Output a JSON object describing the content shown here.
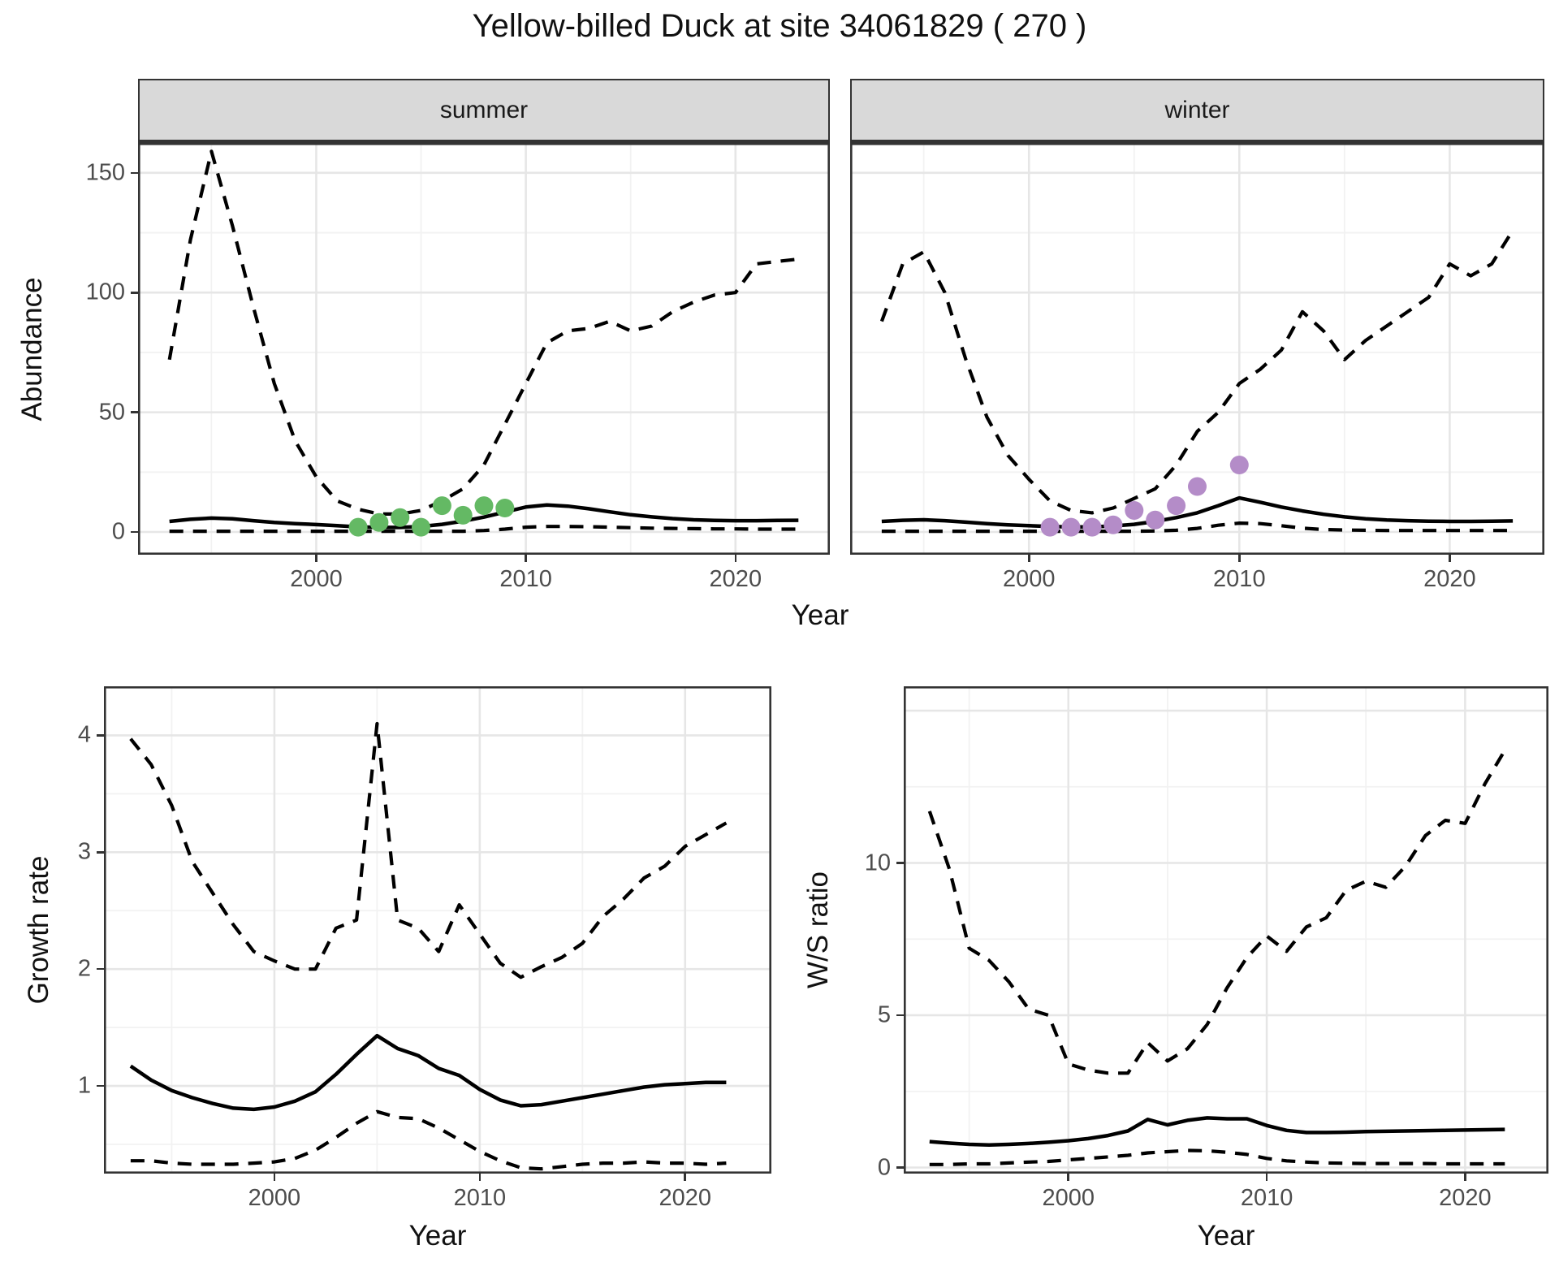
{
  "title": "Yellow-billed Duck at site 34061829 ( 270 )",
  "colors": {
    "line": "#000000",
    "summer_points": "#64b964",
    "winter_points": "#b48cc8",
    "grid_major": "#e6e6e6",
    "grid_minor": "#f2f2f2",
    "axis": "#333333",
    "tick_text": "#4d4d4d",
    "strip_bg": "#d9d9d9"
  },
  "top_row": {
    "ylabel": "Abundance",
    "xlabel": "Year"
  },
  "bottom_left": {
    "ylabel": "Growth rate",
    "xlabel": "Year"
  },
  "bottom_right": {
    "ylabel": "W/S ratio",
    "xlabel": "Year"
  },
  "chart_data": [
    {
      "id": "summer",
      "type": "line",
      "facet_label": "summer",
      "xlim": [
        1991.5,
        2024.5
      ],
      "ylim": [
        -9.5,
        162.5
      ],
      "xticks": {
        "major": [
          2000,
          2010,
          2020
        ],
        "minor": [
          1995,
          2005,
          2015
        ],
        "labels": [
          "2000",
          "2010",
          "2020"
        ]
      },
      "yticks": {
        "major": [
          0,
          50,
          100,
          150
        ],
        "minor": [
          25,
          75,
          125
        ],
        "labels": [
          "0",
          "50",
          "100",
          "150"
        ]
      },
      "show_y_labels": true,
      "show_x_labels": true,
      "x": [
        1993,
        1994,
        1995,
        1996,
        1997,
        1998,
        1999,
        2000,
        2001,
        2002,
        2003,
        2004,
        2005,
        2006,
        2007,
        2008,
        2009,
        2010,
        2011,
        2012,
        2013,
        2014,
        2015,
        2016,
        2017,
        2018,
        2019,
        2020,
        2021,
        2022,
        2023
      ],
      "series": [
        {
          "name": "upper_ci",
          "style": "dashed",
          "values": [
            72,
            122,
            159,
            128,
            94,
            62,
            38,
            23,
            13,
            9.5,
            7.5,
            7.5,
            9,
            13,
            18,
            28,
            45,
            62,
            79,
            84,
            85,
            88,
            84,
            86,
            92,
            96,
            99,
            100,
            112,
            113,
            114
          ]
        },
        {
          "name": "lower_ci",
          "style": "dashed",
          "values": [
            0.3,
            0.3,
            0.3,
            0.3,
            0.3,
            0.3,
            0.3,
            0.3,
            0.3,
            0.3,
            0.3,
            0.3,
            0.3,
            0.3,
            0.3,
            0.6,
            1.2,
            2.0,
            2.3,
            2.3,
            2.2,
            2.0,
            1.8,
            1.6,
            1.5,
            1.4,
            1.3,
            1.3,
            1.2,
            1.2,
            1.2
          ]
        },
        {
          "name": "fitted",
          "style": "solid",
          "values": [
            4.4,
            5.3,
            5.8,
            5.5,
            4.7,
            4.0,
            3.5,
            3.1,
            2.6,
            2.1,
            1.9,
            1.9,
            2.3,
            3.2,
            4.5,
            6.2,
            8.3,
            10.4,
            11.3,
            10.8,
            9.7,
            8.4,
            7.2,
            6.3,
            5.6,
            5.1,
            4.8,
            4.7,
            4.7,
            4.8,
            4.9
          ]
        }
      ],
      "points": {
        "name": "observed_counts",
        "color": "#64b964",
        "data": [
          [
            2002,
            2
          ],
          [
            2003,
            4
          ],
          [
            2004,
            6
          ],
          [
            2005,
            2
          ],
          [
            2006,
            11
          ],
          [
            2007,
            7
          ],
          [
            2008,
            11
          ],
          [
            2009,
            10
          ]
        ]
      }
    },
    {
      "id": "winter",
      "type": "line",
      "facet_label": "winter",
      "xlim": [
        1991.5,
        2024.5
      ],
      "ylim": [
        -9.5,
        162.5
      ],
      "xticks": {
        "major": [
          2000,
          2010,
          2020
        ],
        "minor": [
          1995,
          2005,
          2015
        ],
        "labels": [
          "2000",
          "2010",
          "2020"
        ]
      },
      "yticks": {
        "major": [
          0,
          50,
          100,
          150
        ],
        "minor": [
          25,
          75,
          125
        ],
        "labels": [
          "0",
          "50",
          "100",
          "150"
        ]
      },
      "show_y_labels": false,
      "show_x_labels": true,
      "x": [
        1993,
        1994,
        1995,
        1996,
        1997,
        1998,
        1999,
        2000,
        2001,
        2002,
        2003,
        2004,
        2005,
        2006,
        2007,
        2008,
        2009,
        2010,
        2011,
        2012,
        2013,
        2014,
        2015,
        2016,
        2017,
        2018,
        2019,
        2020,
        2021,
        2022,
        2023
      ],
      "series": [
        {
          "name": "upper_ci",
          "style": "dashed",
          "values": [
            88,
            112,
            117,
            100,
            72,
            48,
            32,
            22,
            13,
            9,
            8,
            10,
            14,
            18,
            28,
            42,
            50,
            62,
            68,
            76,
            92,
            84,
            72,
            80,
            86,
            92,
            98,
            112,
            107,
            112,
            126
          ]
        },
        {
          "name": "lower_ci",
          "style": "dashed",
          "values": [
            0.3,
            0.3,
            0.3,
            0.3,
            0.3,
            0.3,
            0.3,
            0.3,
            0.3,
            0.3,
            0.3,
            0.3,
            0.3,
            0.4,
            0.7,
            1.5,
            2.8,
            3.7,
            3.5,
            2.6,
            1.6,
            1.0,
            0.8,
            0.7,
            0.6,
            0.6,
            0.6,
            0.6,
            0.6,
            0.6,
            0.6
          ]
        },
        {
          "name": "fitted",
          "style": "solid",
          "values": [
            4.4,
            4.9,
            5.1,
            4.7,
            4.1,
            3.5,
            3.0,
            2.6,
            2.3,
            2.1,
            2.1,
            2.5,
            3.2,
            4.4,
            6.0,
            8.0,
            11.0,
            14.2,
            12.4,
            10.4,
            8.8,
            7.4,
            6.3,
            5.5,
            5.0,
            4.7,
            4.5,
            4.4,
            4.4,
            4.5,
            4.6
          ]
        }
      ],
      "points": {
        "name": "observed_counts",
        "color": "#b48cc8",
        "data": [
          [
            2001,
            2
          ],
          [
            2002,
            2
          ],
          [
            2003,
            2
          ],
          [
            2004,
            3
          ],
          [
            2005,
            9
          ],
          [
            2006,
            5
          ],
          [
            2007,
            11
          ],
          [
            2008,
            19
          ],
          [
            2010,
            28
          ]
        ]
      }
    },
    {
      "id": "growth",
      "type": "line",
      "facet_label": "",
      "xlim": [
        1991.7,
        2024.2
      ],
      "ylim": [
        0.25,
        4.42
      ],
      "xticks": {
        "major": [
          2000,
          2010,
          2020
        ],
        "minor": [
          1995,
          2005,
          2015
        ],
        "labels": [
          "2000",
          "2010",
          "2020"
        ]
      },
      "yticks": {
        "major": [
          1,
          2,
          3,
          4
        ],
        "minor": [
          0.5,
          1.5,
          2.5,
          3.5
        ],
        "labels": [
          "1",
          "2",
          "3",
          "4"
        ]
      },
      "show_y_labels": true,
      "show_x_labels": true,
      "x": [
        1993,
        1994,
        1995,
        1996,
        1997,
        1998,
        1999,
        2000,
        2001,
        2002,
        2003,
        2004,
        2005,
        2006,
        2007,
        2008,
        2009,
        2010,
        2011,
        2012,
        2013,
        2014,
        2015,
        2016,
        2017,
        2018,
        2019,
        2020,
        2021,
        2022
      ],
      "series": [
        {
          "name": "upper_ci",
          "style": "dashed",
          "values": [
            3.97,
            3.75,
            3.4,
            2.92,
            2.65,
            2.38,
            2.15,
            2.07,
            2.0,
            2.0,
            2.35,
            2.42,
            4.1,
            2.42,
            2.35,
            2.15,
            2.55,
            2.3,
            2.05,
            1.93,
            2.02,
            2.1,
            2.22,
            2.45,
            2.6,
            2.78,
            2.88,
            3.05,
            3.15,
            3.25
          ]
        },
        {
          "name": "lower_ci",
          "style": "dashed",
          "values": [
            0.36,
            0.36,
            0.34,
            0.33,
            0.33,
            0.33,
            0.34,
            0.35,
            0.38,
            0.45,
            0.56,
            0.68,
            0.78,
            0.73,
            0.72,
            0.64,
            0.54,
            0.44,
            0.36,
            0.3,
            0.29,
            0.31,
            0.33,
            0.34,
            0.34,
            0.35,
            0.34,
            0.34,
            0.33,
            0.34
          ]
        },
        {
          "name": "fitted",
          "style": "solid",
          "values": [
            1.17,
            1.05,
            0.96,
            0.9,
            0.85,
            0.81,
            0.8,
            0.82,
            0.87,
            0.95,
            1.1,
            1.27,
            1.43,
            1.32,
            1.26,
            1.15,
            1.09,
            0.97,
            0.88,
            0.83,
            0.84,
            0.87,
            0.9,
            0.93,
            0.96,
            0.99,
            1.01,
            1.02,
            1.03,
            1.03
          ]
        }
      ],
      "points": null
    },
    {
      "id": "ws",
      "type": "line",
      "facet_label": "",
      "xlim": [
        1991.7,
        2024.2
      ],
      "ylim": [
        -0.2,
        15.8
      ],
      "xticks": {
        "major": [
          2000,
          2010,
          2020
        ],
        "minor": [
          1995,
          2005,
          2015
        ],
        "labels": [
          "2000",
          "2010",
          "2020"
        ]
      },
      "yticks": {
        "major": [
          0,
          5,
          10,
          15
        ],
        "minor": [
          2.5,
          7.5,
          12.5
        ],
        "labels": [
          "0",
          "5",
          "10",
          ""
        ]
      },
      "show_y_labels": true,
      "show_x_labels": true,
      "x": [
        1993,
        1994,
        1995,
        1996,
        1997,
        1998,
        1999,
        2000,
        2001,
        2002,
        2003,
        2004,
        2005,
        2006,
        2007,
        2008,
        2009,
        2010,
        2011,
        2012,
        2013,
        2014,
        2015,
        2016,
        2017,
        2018,
        2019,
        2020,
        2021,
        2022
      ],
      "series": [
        {
          "name": "upper_ci",
          "style": "dashed",
          "values": [
            11.7,
            9.8,
            7.2,
            6.8,
            6.1,
            5.2,
            5.0,
            3.4,
            3.2,
            3.1,
            3.1,
            4.1,
            3.5,
            3.9,
            4.7,
            5.9,
            6.9,
            7.6,
            7.1,
            7.9,
            8.2,
            9.1,
            9.4,
            9.2,
            9.9,
            10.9,
            11.4,
            11.3,
            12.6,
            13.7
          ]
        },
        {
          "name": "lower_ci",
          "style": "dashed",
          "values": [
            0.1,
            0.1,
            0.12,
            0.12,
            0.15,
            0.18,
            0.2,
            0.25,
            0.3,
            0.35,
            0.4,
            0.48,
            0.52,
            0.56,
            0.55,
            0.5,
            0.43,
            0.3,
            0.22,
            0.18,
            0.15,
            0.14,
            0.13,
            0.13,
            0.13,
            0.13,
            0.12,
            0.12,
            0.12,
            0.12
          ]
        },
        {
          "name": "fitted",
          "style": "solid",
          "values": [
            0.85,
            0.8,
            0.76,
            0.74,
            0.76,
            0.79,
            0.83,
            0.88,
            0.95,
            1.05,
            1.2,
            1.58,
            1.4,
            1.55,
            1.63,
            1.6,
            1.6,
            1.38,
            1.22,
            1.15,
            1.15,
            1.16,
            1.18,
            1.19,
            1.2,
            1.21,
            1.22,
            1.23,
            1.24,
            1.25
          ]
        }
      ],
      "points": null
    }
  ]
}
